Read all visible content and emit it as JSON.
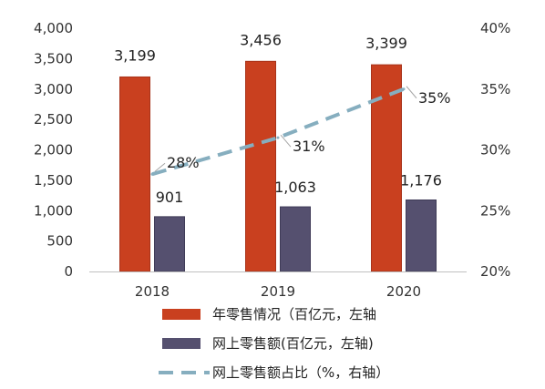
{
  "chart_data": {
    "type": "bar",
    "categories": [
      "2018",
      "2019",
      "2020"
    ],
    "series": [
      {
        "name": "年零售情况（百亿元，左轴",
        "kind": "bar",
        "axis": "left",
        "values": [
          3199,
          3456,
          3399
        ],
        "labels": [
          "3,199",
          "3,456",
          "3,399"
        ],
        "color": "#c9401f"
      },
      {
        "name": "网上零售额(百亿元，左轴)",
        "kind": "bar",
        "axis": "left",
        "values": [
          901,
          1063,
          1176
        ],
        "labels": [
          "901",
          "1,063",
          "1,176"
        ],
        "color": "#55506f"
      },
      {
        "name": "网上零售额占比（%，右轴）",
        "kind": "line",
        "style": "dashed",
        "axis": "right",
        "values": [
          28,
          31,
          35
        ],
        "labels": [
          "28%",
          "31%",
          "35%"
        ],
        "color": "#86aebf"
      }
    ],
    "y_left": {
      "min": 0,
      "max": 4000,
      "ticks": [
        0,
        500,
        1000,
        1500,
        2000,
        2500,
        3000,
        3500,
        4000
      ],
      "tick_labels": [
        "0",
        "500",
        "1,000",
        "1,500",
        "2,000",
        "2,500",
        "3,000",
        "3,500",
        "4,000"
      ]
    },
    "y_right": {
      "min": 20,
      "max": 40,
      "ticks": [
        20,
        25,
        30,
        35,
        40
      ],
      "tick_labels": [
        "20%",
        "25%",
        "30%",
        "35%",
        "40%"
      ]
    },
    "legend_position": "bottom",
    "grid": false
  }
}
